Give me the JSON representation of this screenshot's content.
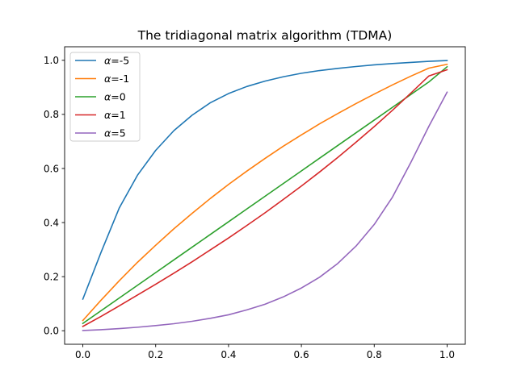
{
  "chart_data": {
    "type": "line",
    "title": "The tridiagonal matrix algorithm (TDMA)",
    "xlabel": "",
    "ylabel": "",
    "xlim": [
      -0.05,
      1.05
    ],
    "ylim": [
      -0.05,
      1.05
    ],
    "x_ticks": [
      0.0,
      0.2,
      0.4,
      0.6,
      0.8,
      1.0
    ],
    "x_tick_labels": [
      "0.0",
      "0.2",
      "0.4",
      "0.6",
      "0.8",
      "1.0"
    ],
    "y_ticks": [
      0.0,
      0.2,
      0.4,
      0.6,
      0.8,
      1.0
    ],
    "y_tick_labels": [
      "0.0",
      "0.2",
      "0.4",
      "0.6",
      "0.8",
      "1.0"
    ],
    "grid": false,
    "legend_position": "top-left",
    "x": [
      0.0,
      0.05,
      0.1,
      0.15,
      0.2,
      0.25,
      0.3,
      0.35,
      0.4,
      0.45,
      0.5,
      0.55,
      0.6,
      0.65,
      0.7,
      0.75,
      0.8,
      0.85,
      0.9,
      0.95,
      1.0
    ],
    "series": [
      {
        "name": "α=-5",
        "alpha_symbol": "α",
        "alpha_value": "=-5",
        "color": "#1f77b4",
        "values": [
          0.117,
          0.29,
          0.454,
          0.575,
          0.667,
          0.74,
          0.797,
          0.843,
          0.877,
          0.903,
          0.923,
          0.939,
          0.952,
          0.962,
          0.97,
          0.977,
          0.983,
          0.988,
          0.992,
          0.996,
          0.999
        ]
      },
      {
        "name": "α=-1",
        "alpha_symbol": "α",
        "alpha_value": "=-1",
        "color": "#ff7f0e",
        "values": [
          0.038,
          0.113,
          0.185,
          0.253,
          0.316,
          0.377,
          0.434,
          0.489,
          0.541,
          0.59,
          0.637,
          0.682,
          0.724,
          0.765,
          0.803,
          0.84,
          0.875,
          0.909,
          0.941,
          0.971,
          0.985
        ]
      },
      {
        "name": "α=0",
        "alpha_symbol": "α",
        "alpha_value": "=0",
        "color": "#2ca02c",
        "values": [
          0.027,
          0.074,
          0.121,
          0.168,
          0.215,
          0.262,
          0.309,
          0.356,
          0.403,
          0.45,
          0.497,
          0.544,
          0.591,
          0.638,
          0.685,
          0.732,
          0.779,
          0.826,
          0.873,
          0.92,
          0.976
        ]
      },
      {
        "name": "α=1",
        "alpha_symbol": "α",
        "alpha_value": "=1",
        "color": "#d62728",
        "values": [
          0.016,
          0.053,
          0.092,
          0.132,
          0.172,
          0.213,
          0.255,
          0.299,
          0.343,
          0.389,
          0.436,
          0.485,
          0.535,
          0.587,
          0.641,
          0.697,
          0.755,
          0.815,
          0.878,
          0.942,
          0.965
        ]
      },
      {
        "name": "α=5",
        "alpha_symbol": "α",
        "alpha_value": "=5",
        "color": "#9467bd",
        "values": [
          0.001,
          0.004,
          0.008,
          0.013,
          0.019,
          0.026,
          0.035,
          0.046,
          0.059,
          0.077,
          0.098,
          0.125,
          0.158,
          0.198,
          0.249,
          0.313,
          0.393,
          0.494,
          0.621,
          0.756,
          0.882
        ]
      }
    ]
  }
}
